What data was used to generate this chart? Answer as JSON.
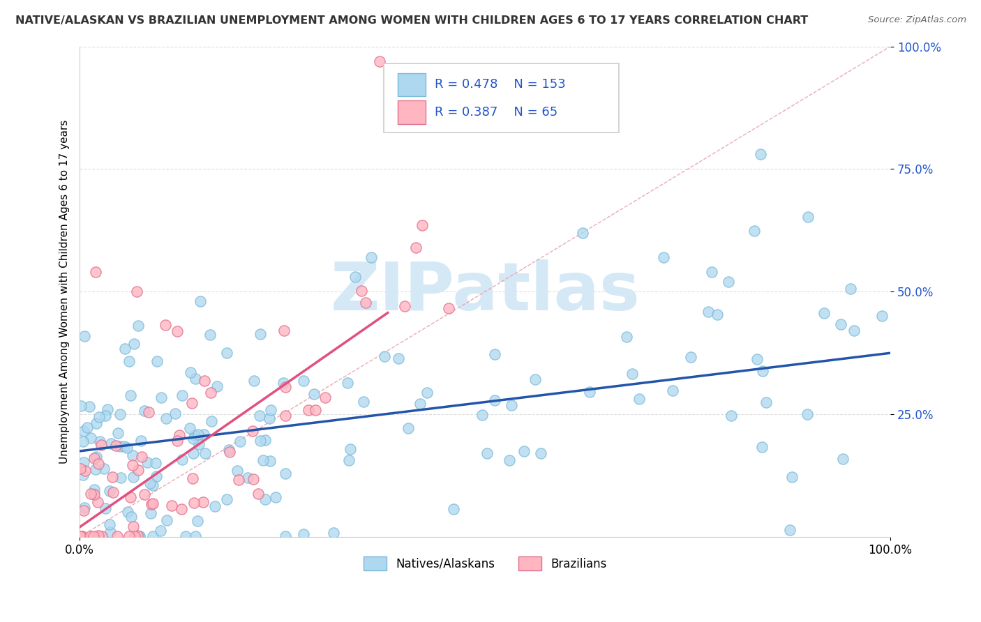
{
  "title": "NATIVE/ALASKAN VS BRAZILIAN UNEMPLOYMENT AMONG WOMEN WITH CHILDREN AGES 6 TO 17 YEARS CORRELATION CHART",
  "source": "Source: ZipAtlas.com",
  "ylabel": "Unemployment Among Women with Children Ages 6 to 17 years",
  "native_R": 0.478,
  "native_N": 153,
  "brazilian_R": 0.387,
  "brazilian_N": 65,
  "native_color": "#ADD8F0",
  "native_edge_color": "#7AB8D8",
  "brazilian_color": "#FFB6C1",
  "brazilian_edge_color": "#E07090",
  "native_line_color": "#2255AA",
  "brazilian_line_color": "#E05080",
  "diag_line_color": "#E8A0B0",
  "watermark_color": "#D4E8F5",
  "background_color": "#FFFFFF",
  "grid_color": "#DDDDDD",
  "legend_text_color": "#2255CC",
  "title_color": "#333333",
  "title_fontsize": 11.5,
  "label_fontsize": 11,
  "tick_fontsize": 12
}
